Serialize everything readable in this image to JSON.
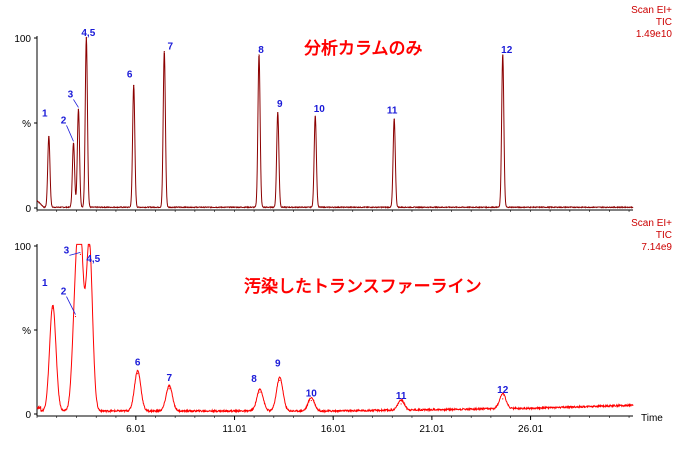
{
  "chart_data": [
    {
      "type": "line",
      "title": "分析カラムのみ",
      "instrument": [
        "Scan EI+",
        "TIC",
        "1.49e10"
      ],
      "ylabel": "%",
      "ylim": [
        0,
        100
      ],
      "yticks": [
        "100",
        "%",
        "0"
      ],
      "xlim": [
        1.0,
        31.2
      ],
      "color": "#8b0000",
      "peaks": [
        {
          "label": "1",
          "x": 1.6,
          "y": 42
        },
        {
          "label": "2",
          "x": 2.85,
          "y": 38
        },
        {
          "label": "3",
          "x": 3.1,
          "y": 58
        },
        {
          "label": "4,5",
          "x": 3.5,
          "y": 100
        },
        {
          "label": "6",
          "x": 5.9,
          "y": 72
        },
        {
          "label": "7",
          "x": 7.45,
          "y": 92
        },
        {
          "label": "8",
          "x": 12.25,
          "y": 90
        },
        {
          "label": "9",
          "x": 13.2,
          "y": 56
        },
        {
          "label": "10",
          "x": 15.1,
          "y": 54
        },
        {
          "label": "11",
          "x": 19.1,
          "y": 52
        },
        {
          "label": "12",
          "x": 24.6,
          "y": 90
        }
      ]
    },
    {
      "type": "line",
      "title": "汚染したトランスファーライン",
      "instrument": [
        "Scan EI+",
        "TIC",
        "7.14e9"
      ],
      "ylabel": "%",
      "ylim": [
        0,
        100
      ],
      "yticks": [
        "100",
        "%",
        "0"
      ],
      "xlabel": "Time",
      "xlim": [
        1.0,
        31.2
      ],
      "xticks": [
        "6.01",
        "11.01",
        "16.01",
        "21.01",
        "26.01"
      ],
      "color": "#ff0000",
      "peaks": [
        {
          "label": "1",
          "x": 1.8,
          "y": 63
        },
        {
          "label": "2",
          "x": 2.95,
          "y": 58
        },
        {
          "label": "3",
          "x": 3.2,
          "y": 95
        },
        {
          "label": "4,5",
          "x": 3.65,
          "y": 100
        },
        {
          "label": "6",
          "x": 6.1,
          "y": 24
        },
        {
          "label": "7",
          "x": 7.7,
          "y": 15
        },
        {
          "label": "8",
          "x": 12.3,
          "y": 13
        },
        {
          "label": "9",
          "x": 13.3,
          "y": 20
        },
        {
          "label": "10",
          "x": 14.9,
          "y": 8
        },
        {
          "label": "11",
          "x": 19.45,
          "y": 6
        },
        {
          "label": "12",
          "x": 24.6,
          "y": 9
        }
      ]
    }
  ]
}
